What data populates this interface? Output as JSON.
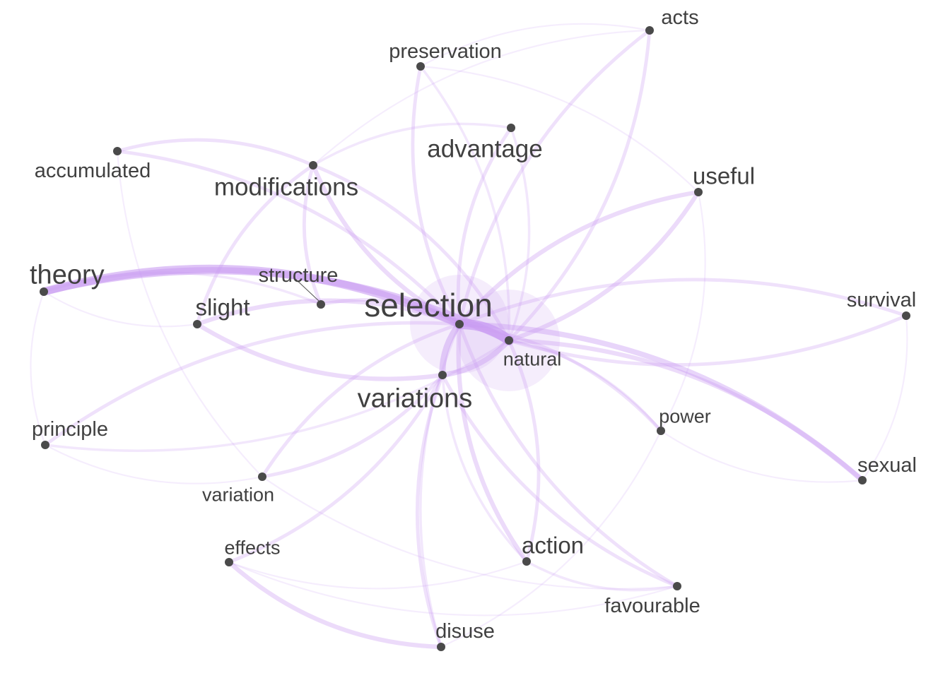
{
  "graph": {
    "nodes": [
      {
        "id": "selection",
        "label": "selection",
        "weight": 10
      },
      {
        "id": "natural",
        "label": "natural",
        "weight": 5
      },
      {
        "id": "variations",
        "label": "variations",
        "weight": 6
      },
      {
        "id": "theory",
        "label": "theory",
        "weight": 6
      },
      {
        "id": "modifications",
        "label": "modifications",
        "weight": 5
      },
      {
        "id": "advantage",
        "label": "advantage",
        "weight": 5
      },
      {
        "id": "useful",
        "label": "useful",
        "weight": 4
      },
      {
        "id": "acts",
        "label": "acts",
        "weight": 3
      },
      {
        "id": "preservation",
        "label": "preservation",
        "weight": 3
      },
      {
        "id": "accumulated",
        "label": "accumulated",
        "weight": 3
      },
      {
        "id": "structure",
        "label": "structure",
        "weight": 3
      },
      {
        "id": "slight",
        "label": "slight",
        "weight": 4
      },
      {
        "id": "survival",
        "label": "survival",
        "weight": 3
      },
      {
        "id": "principle",
        "label": "principle",
        "weight": 3
      },
      {
        "id": "power",
        "label": "power",
        "weight": 2
      },
      {
        "id": "sexual",
        "label": "sexual",
        "weight": 3
      },
      {
        "id": "variation",
        "label": "variation",
        "weight": 2
      },
      {
        "id": "effects",
        "label": "effects",
        "weight": 2
      },
      {
        "id": "action",
        "label": "action",
        "weight": 4
      },
      {
        "id": "favourable",
        "label": "favourable",
        "weight": 3
      },
      {
        "id": "disuse",
        "label": "disuse",
        "weight": 3
      }
    ],
    "edges": [
      {
        "source": "selection",
        "target": "natural",
        "strength": 10
      },
      {
        "source": "selection",
        "target": "theory",
        "strength": 8
      },
      {
        "source": "natural",
        "target": "theory",
        "strength": 7
      },
      {
        "source": "selection",
        "target": "variations",
        "strength": 6
      },
      {
        "source": "natural",
        "target": "variations",
        "strength": 5
      },
      {
        "source": "selection",
        "target": "sexual",
        "strength": 5
      },
      {
        "source": "natural",
        "target": "sexual",
        "strength": 4
      },
      {
        "source": "selection",
        "target": "survival",
        "strength": 3
      },
      {
        "source": "natural",
        "target": "survival",
        "strength": 3
      },
      {
        "source": "selection",
        "target": "useful",
        "strength": 4
      },
      {
        "source": "natural",
        "target": "useful",
        "strength": 4
      },
      {
        "source": "selection",
        "target": "acts",
        "strength": 3
      },
      {
        "source": "natural",
        "target": "acts",
        "strength": 3
      },
      {
        "source": "selection",
        "target": "modifications",
        "strength": 4
      },
      {
        "source": "natural",
        "target": "modifications",
        "strength": 3
      },
      {
        "source": "selection",
        "target": "accumulated",
        "strength": 3
      },
      {
        "source": "modifications",
        "target": "accumulated",
        "strength": 3
      },
      {
        "source": "selection",
        "target": "slight",
        "strength": 4
      },
      {
        "source": "slight",
        "target": "variations",
        "strength": 4
      },
      {
        "source": "slight",
        "target": "modifications",
        "strength": 3
      },
      {
        "source": "selection",
        "target": "principle",
        "strength": 3
      },
      {
        "source": "natural",
        "target": "principle",
        "strength": 2
      },
      {
        "source": "selection",
        "target": "action",
        "strength": 4
      },
      {
        "source": "natural",
        "target": "action",
        "strength": 3
      },
      {
        "source": "selection",
        "target": "favourable",
        "strength": 3
      },
      {
        "source": "variations",
        "target": "favourable",
        "strength": 3
      },
      {
        "source": "selection",
        "target": "power",
        "strength": 3
      },
      {
        "source": "natural",
        "target": "power",
        "strength": 2
      },
      {
        "source": "selection",
        "target": "advantage",
        "strength": 3
      },
      {
        "source": "natural",
        "target": "advantage",
        "strength": 2
      },
      {
        "source": "selection",
        "target": "preservation",
        "strength": 3
      },
      {
        "source": "natural",
        "target": "preservation",
        "strength": 2
      },
      {
        "source": "structure",
        "target": "selection",
        "strength": 3
      },
      {
        "source": "structure",
        "target": "modifications",
        "strength": 3
      },
      {
        "source": "structure",
        "target": "theory",
        "strength": 2
      },
      {
        "source": "variations",
        "target": "variation",
        "strength": 3
      },
      {
        "source": "variation",
        "target": "selection",
        "strength": 3
      },
      {
        "source": "variations",
        "target": "effects",
        "strength": 3
      },
      {
        "source": "effects",
        "target": "disuse",
        "strength": 4
      },
      {
        "source": "disuse",
        "target": "variations",
        "strength": 3
      },
      {
        "source": "disuse",
        "target": "selection",
        "strength": 2
      },
      {
        "source": "variations",
        "target": "action",
        "strength": 2
      },
      {
        "source": "favourable",
        "target": "action",
        "strength": 2
      },
      {
        "source": "variation",
        "target": "favourable",
        "strength": 1
      },
      {
        "source": "sexual",
        "target": "power",
        "strength": 1
      },
      {
        "source": "advantage",
        "target": "modifications",
        "strength": 2
      },
      {
        "source": "preservation",
        "target": "useful",
        "strength": 1
      },
      {
        "source": "acts",
        "target": "modifications",
        "strength": 1
      },
      {
        "source": "theory",
        "target": "principle",
        "strength": 1
      },
      {
        "source": "accumulated",
        "target": "variation",
        "strength": 1
      },
      {
        "source": "effects",
        "target": "action",
        "strength": 1
      },
      {
        "source": "power",
        "target": "disuse",
        "strength": 1
      },
      {
        "source": "effects",
        "target": "favourable",
        "strength": 1
      },
      {
        "source": "useful",
        "target": "power",
        "strength": 1
      },
      {
        "source": "preservation",
        "target": "acts",
        "strength": 1
      },
      {
        "source": "theory",
        "target": "slight",
        "strength": 1
      },
      {
        "source": "survival",
        "target": "sexual",
        "strength": 1
      },
      {
        "source": "principle",
        "target": "variation",
        "strength": 1
      }
    ],
    "colors": {
      "edge": "#c99cf2",
      "node": "#4a4a4a",
      "label": "#404040",
      "halo": "#c79af0"
    }
  }
}
